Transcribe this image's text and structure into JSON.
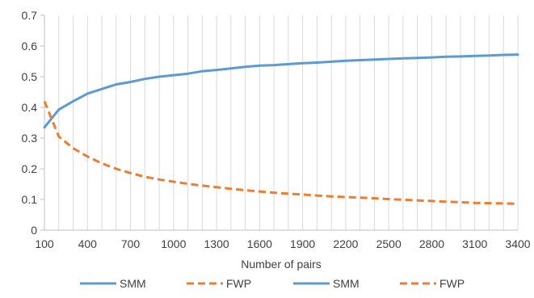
{
  "chart_data": {
    "type": "line",
    "xlabel": "Number of pairs",
    "ylabel": "",
    "ylim": [
      0,
      0.7
    ],
    "yticks": [
      "0",
      "0.1",
      "0.2",
      "0.3",
      "0.4",
      "0.5",
      "0.6",
      "0.7"
    ],
    "xticks": [
      "100",
      "400",
      "700",
      "1000",
      "1300",
      "1600",
      "1900",
      "2200",
      "2500",
      "2800",
      "3100",
      "3400"
    ],
    "grid": "vertical",
    "legend_position": "bottom",
    "x": [
      100,
      200,
      300,
      400,
      500,
      600,
      700,
      800,
      900,
      1000,
      1100,
      1200,
      1300,
      1400,
      1500,
      1600,
      1700,
      1800,
      1900,
      2000,
      2100,
      2200,
      2300,
      2400,
      2500,
      2600,
      2700,
      2800,
      2900,
      3000,
      3100,
      3200,
      3300,
      3400
    ],
    "series": [
      {
        "name": "SMM",
        "color": "#5b9bd5",
        "dash": "solid",
        "values": [
          0.335,
          0.393,
          0.42,
          0.445,
          0.46,
          0.475,
          0.483,
          0.493,
          0.5,
          0.505,
          0.51,
          0.518,
          0.522,
          0.527,
          0.532,
          0.536,
          0.538,
          0.541,
          0.544,
          0.546,
          0.549,
          0.552,
          0.554,
          0.556,
          0.558,
          0.56,
          0.561,
          0.563,
          0.565,
          0.566,
          0.568,
          0.569,
          0.571,
          0.572
        ]
      },
      {
        "name": "FWP",
        "color": "#ed7d31",
        "dash": "dashed",
        "values": [
          0.42,
          0.305,
          0.267,
          0.24,
          0.218,
          0.2,
          0.186,
          0.174,
          0.165,
          0.158,
          0.151,
          0.145,
          0.14,
          0.135,
          0.13,
          0.126,
          0.122,
          0.119,
          0.116,
          0.113,
          0.11,
          0.108,
          0.106,
          0.104,
          0.101,
          0.099,
          0.097,
          0.095,
          0.093,
          0.091,
          0.089,
          0.088,
          0.087,
          0.086
        ]
      }
    ],
    "legend": [
      {
        "label": "SMM",
        "color": "#5b9bd5",
        "dash": "solid"
      },
      {
        "label": "FWP",
        "color": "#ed7d31",
        "dash": "dashed"
      },
      {
        "label": "SMM",
        "color": "#5b9bd5",
        "dash": "solid"
      },
      {
        "label": "FWP",
        "color": "#ed7d31",
        "dash": "dashed"
      }
    ]
  }
}
